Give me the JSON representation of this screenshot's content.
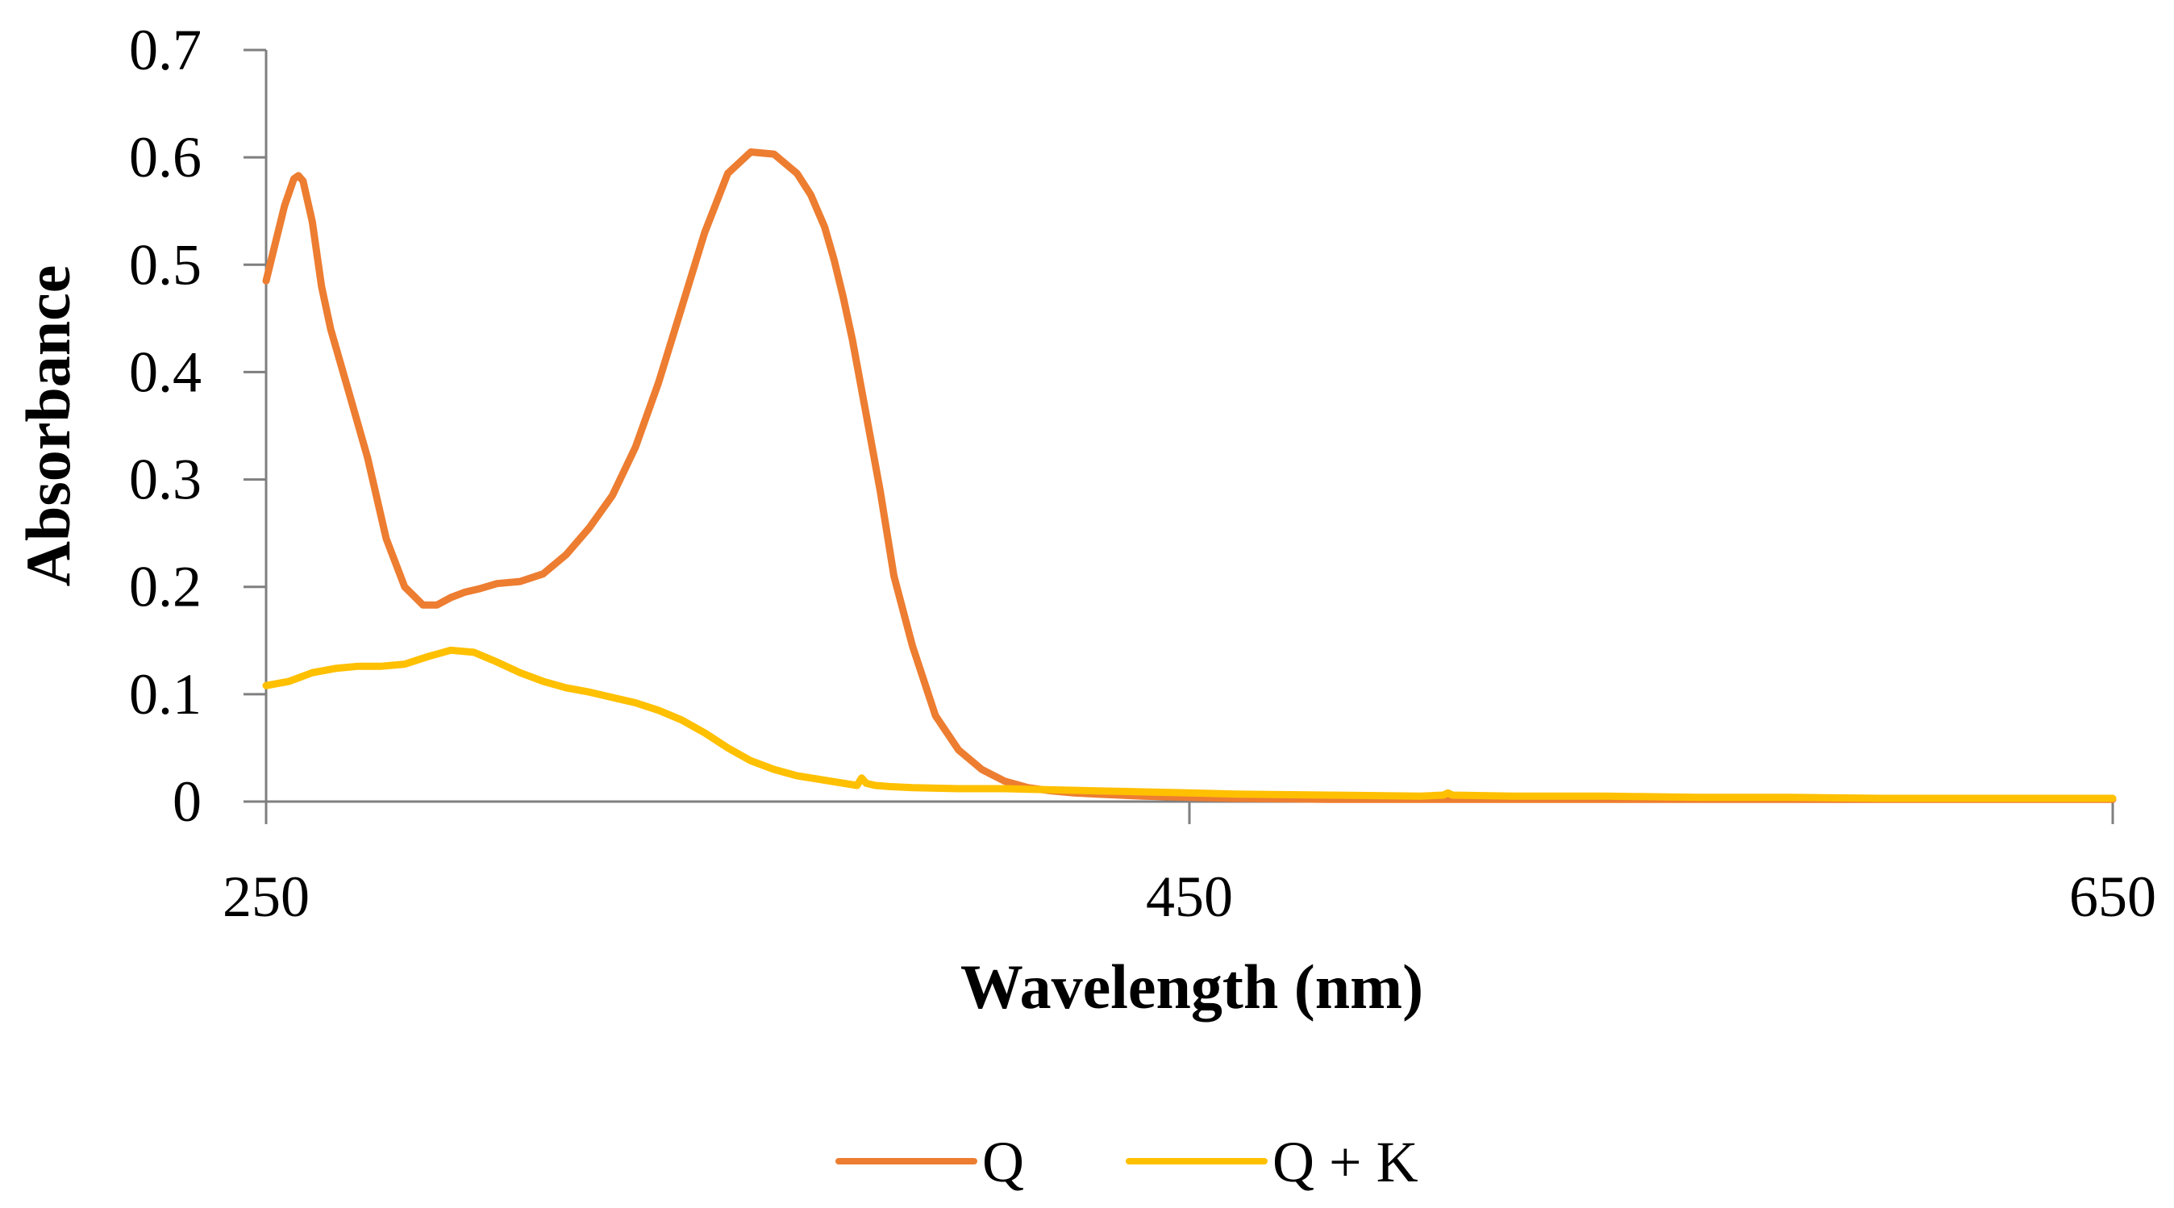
{
  "chart_data": {
    "type": "line",
    "title": "",
    "xlabel": "Wavelength (nm)",
    "ylabel": "Absorbance",
    "xlim": [
      250,
      650
    ],
    "ylim": [
      0,
      0.7
    ],
    "x_ticks": [
      250,
      450,
      650
    ],
    "x_tick_labels": [
      "250",
      "450",
      "650"
    ],
    "y_ticks": [
      0,
      0.1,
      0.2,
      0.3,
      0.4,
      0.5,
      0.6,
      0.7
    ],
    "y_tick_labels": [
      "0",
      "0.1",
      "0.2",
      "0.3",
      "0.4",
      "0.5",
      "0.6",
      "0.7"
    ],
    "grid": false,
    "legend_position": "bottom",
    "series": [
      {
        "name": "Q",
        "color": "#ED7D31",
        "x": [
          250,
          252,
          254,
          256,
          257,
          258,
          260,
          262,
          264,
          268,
          272,
          276,
          280,
          284,
          287,
          290,
          293,
          296,
          300,
          305,
          310,
          315,
          320,
          325,
          330,
          335,
          340,
          345,
          350,
          355,
          360,
          365,
          368,
          371,
          373,
          375,
          377,
          380,
          383,
          386,
          390,
          395,
          400,
          405,
          410,
          415,
          420,
          425,
          430,
          440,
          450,
          460,
          480,
          500,
          520,
          540,
          560,
          580,
          600,
          620,
          640,
          650
        ],
        "values": [
          0.485,
          0.52,
          0.555,
          0.58,
          0.583,
          0.578,
          0.54,
          0.48,
          0.44,
          0.38,
          0.32,
          0.245,
          0.2,
          0.183,
          0.183,
          0.19,
          0.195,
          0.198,
          0.203,
          0.205,
          0.212,
          0.23,
          0.255,
          0.285,
          0.33,
          0.39,
          0.46,
          0.53,
          0.585,
          0.605,
          0.603,
          0.585,
          0.565,
          0.535,
          0.505,
          0.47,
          0.43,
          0.36,
          0.29,
          0.21,
          0.145,
          0.08,
          0.048,
          0.03,
          0.019,
          0.013,
          0.01,
          0.008,
          0.007,
          0.005,
          0.004,
          0.003,
          0.002,
          0.002,
          0.002,
          0.002,
          0.002,
          0.002,
          0.002,
          0.002,
          0.002,
          0.002
        ]
      },
      {
        "name": "Q + K",
        "color": "#FFC000",
        "x": [
          250,
          255,
          260,
          265,
          270,
          275,
          280,
          285,
          290,
          295,
          300,
          305,
          310,
          315,
          320,
          325,
          330,
          335,
          340,
          345,
          350,
          355,
          360,
          365,
          378,
          379,
          380,
          381,
          382,
          385,
          390,
          400,
          410,
          420,
          430,
          440,
          450,
          460,
          480,
          500,
          505,
          506,
          507,
          520,
          540,
          560,
          580,
          600,
          620,
          640,
          650
        ],
        "values": [
          0.108,
          0.112,
          0.12,
          0.124,
          0.126,
          0.126,
          0.128,
          0.135,
          0.141,
          0.139,
          0.13,
          0.12,
          0.112,
          0.106,
          0.102,
          0.097,
          0.092,
          0.085,
          0.076,
          0.064,
          0.05,
          0.038,
          0.03,
          0.024,
          0.015,
          0.022,
          0.017,
          0.016,
          0.015,
          0.014,
          0.013,
          0.012,
          0.012,
          0.011,
          0.01,
          0.009,
          0.008,
          0.007,
          0.006,
          0.005,
          0.006,
          0.008,
          0.006,
          0.005,
          0.005,
          0.004,
          0.004,
          0.003,
          0.003,
          0.003,
          0.003
        ]
      }
    ]
  }
}
